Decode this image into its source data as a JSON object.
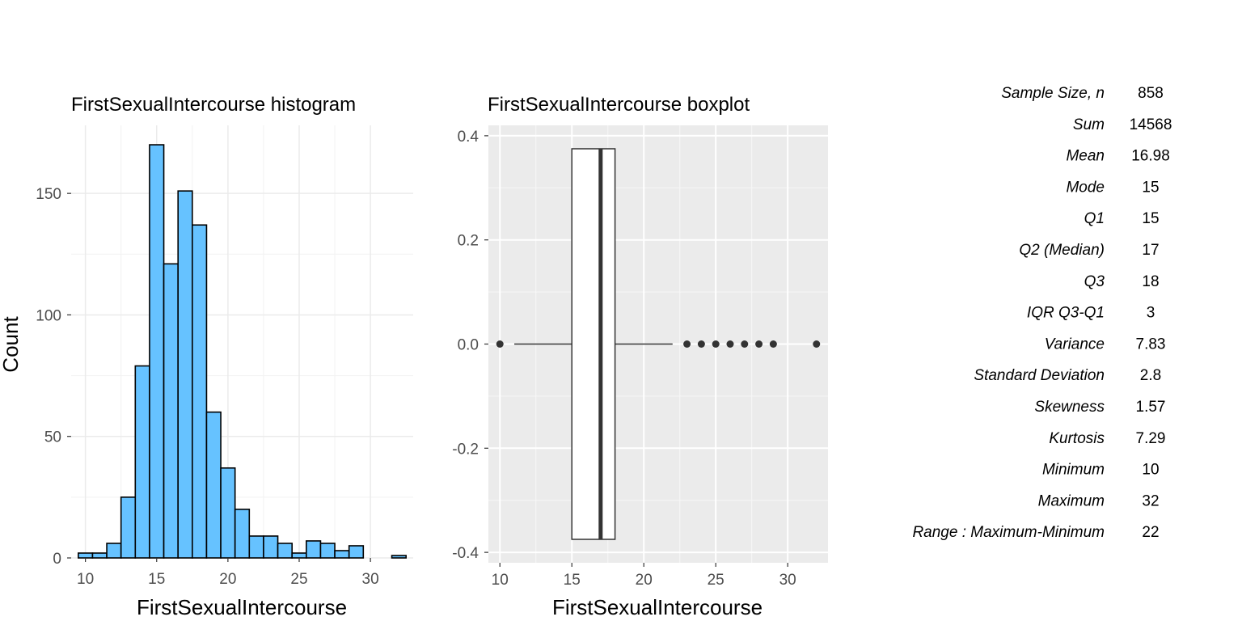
{
  "chart_data": [
    {
      "type": "bar",
      "title": "FirstSexualIntercourse histogram",
      "xlabel": "FirstSexualIntercourse",
      "ylabel": "Count",
      "bin_width": 1,
      "bins": [
        {
          "x": 10,
          "count": 2
        },
        {
          "x": 11,
          "count": 2
        },
        {
          "x": 12,
          "count": 6
        },
        {
          "x": 13,
          "count": 25
        },
        {
          "x": 14,
          "count": 79
        },
        {
          "x": 15,
          "count": 170
        },
        {
          "x": 16,
          "count": 121
        },
        {
          "x": 17,
          "count": 151
        },
        {
          "x": 18,
          "count": 137
        },
        {
          "x": 19,
          "count": 60
        },
        {
          "x": 20,
          "count": 37
        },
        {
          "x": 21,
          "count": 20
        },
        {
          "x": 22,
          "count": 9
        },
        {
          "x": 23,
          "count": 9
        },
        {
          "x": 24,
          "count": 6
        },
        {
          "x": 25,
          "count": 2
        },
        {
          "x": 26,
          "count": 7
        },
        {
          "x": 27,
          "count": 6
        },
        {
          "x": 28,
          "count": 3
        },
        {
          "x": 29,
          "count": 5
        },
        {
          "x": 30,
          "count": 0
        },
        {
          "x": 31,
          "count": 0
        },
        {
          "x": 32,
          "count": 1
        }
      ],
      "xlim": [
        9,
        33
      ],
      "ylim": [
        0,
        178
      ],
      "x_ticks": [
        10,
        15,
        20,
        25,
        30
      ],
      "y_ticks": [
        0,
        50,
        100,
        150
      ],
      "fill_color": "#66c2ff",
      "edge_color": "#000000",
      "grid": true
    },
    {
      "type": "boxplot",
      "title": "FirstSexualIntercourse boxplot",
      "xlabel": "FirstSexualIntercourse",
      "ylabel": "",
      "box": {
        "q1": 15,
        "median": 17,
        "q3": 18,
        "whisker_low": 11,
        "whisker_high": 22,
        "y_low": -0.375,
        "y_high": 0.375
      },
      "outliers": [
        10,
        23,
        24,
        25,
        26,
        27,
        28,
        29,
        32
      ],
      "xlim": [
        9.2,
        32.8
      ],
      "ylim": [
        -0.42,
        0.42
      ],
      "x_ticks": [
        10,
        15,
        20,
        25,
        30
      ],
      "y_ticks": [
        "-0.4",
        "-0.2",
        "0.0",
        "0.2",
        "0.4"
      ],
      "panel_color": "#ebebeb",
      "grid": true
    }
  ],
  "stats": [
    {
      "label": "Sample Size, n",
      "value": "858"
    },
    {
      "label": "Sum",
      "value": "14568"
    },
    {
      "label": "Mean",
      "value": "16.98"
    },
    {
      "label": "Mode",
      "value": "15"
    },
    {
      "label": "Q1",
      "value": "15"
    },
    {
      "label": "Q2 (Median)",
      "value": "17"
    },
    {
      "label": "Q3",
      "value": "18"
    },
    {
      "label": "IQR Q3-Q1",
      "value": "3"
    },
    {
      "label": "Variance",
      "value": "7.83"
    },
    {
      "label": "Standard Deviation",
      "value": "2.8"
    },
    {
      "label": "Skewness",
      "value": "1.57"
    },
    {
      "label": "Kurtosis",
      "value": "7.29"
    },
    {
      "label": "Minimum",
      "value": "10"
    },
    {
      "label": "Maximum",
      "value": "32"
    },
    {
      "label": "Range : Maximum-Minimum",
      "value": "22"
    }
  ]
}
